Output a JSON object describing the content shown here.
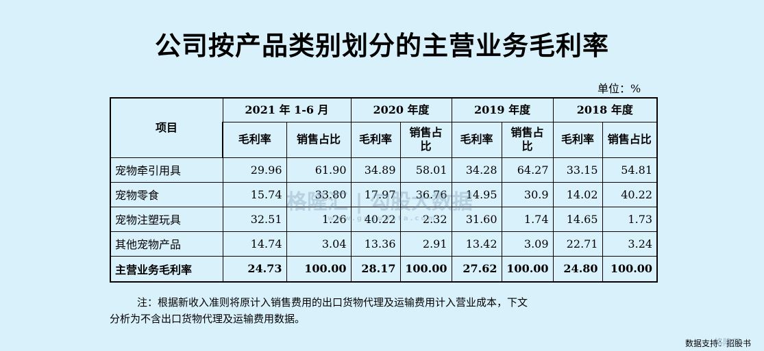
{
  "title": "公司按产品类别划分的主营业务毛利率",
  "unit": "单位：%",
  "table": {
    "corner_header": "项目",
    "periods": [
      "2021 年 1-6 月",
      "2020 年度",
      "2019 年度",
      "2018 年度"
    ],
    "sub_headers": [
      [
        "毛利率",
        "销售占比"
      ],
      [
        "毛利率",
        "销售占比"
      ],
      [
        "毛利率",
        "销售占比"
      ],
      [
        "毛利率",
        "销售占比"
      ]
    ],
    "rows": [
      {
        "label": "宠物牵引用具",
        "values": [
          "29.96",
          "61.90",
          "34.89",
          "58.01",
          "34.28",
          "64.27",
          "33.15",
          "54.81"
        ]
      },
      {
        "label": "宠物零食",
        "values": [
          "15.74",
          "33.80",
          "17.97",
          "36.76",
          "14.95",
          "30.9",
          "14.02",
          "40.22"
        ]
      },
      {
        "label": "宠物注塑玩具",
        "values": [
          "32.51",
          "1.26",
          "40.22",
          "2.32",
          "31.60",
          "1.74",
          "14.65",
          "1.73"
        ]
      },
      {
        "label": "其他宠物产品",
        "values": [
          "14.74",
          "3.04",
          "13.36",
          "2.91",
          "13.42",
          "3.09",
          "22.71",
          "3.24"
        ]
      }
    ],
    "total": {
      "label": "主营业务毛利率",
      "values": [
        "24.73",
        "100.00",
        "28.17",
        "100.00",
        "27.62",
        "100.00",
        "24.80",
        "100.00"
      ]
    }
  },
  "note_line1": "注：根据新收入准则将原计入销售费用的出口货物代理及运输费用计入营业成本，下文",
  "note_line2": "分析为不含出口货物代理及运输费用数据。",
  "watermark": "格隆汇 | 勾股大数据",
  "watermark_url": "www.gogudata.com",
  "source": "数据支持：招股书",
  "corner_logo": "格隆汇"
}
